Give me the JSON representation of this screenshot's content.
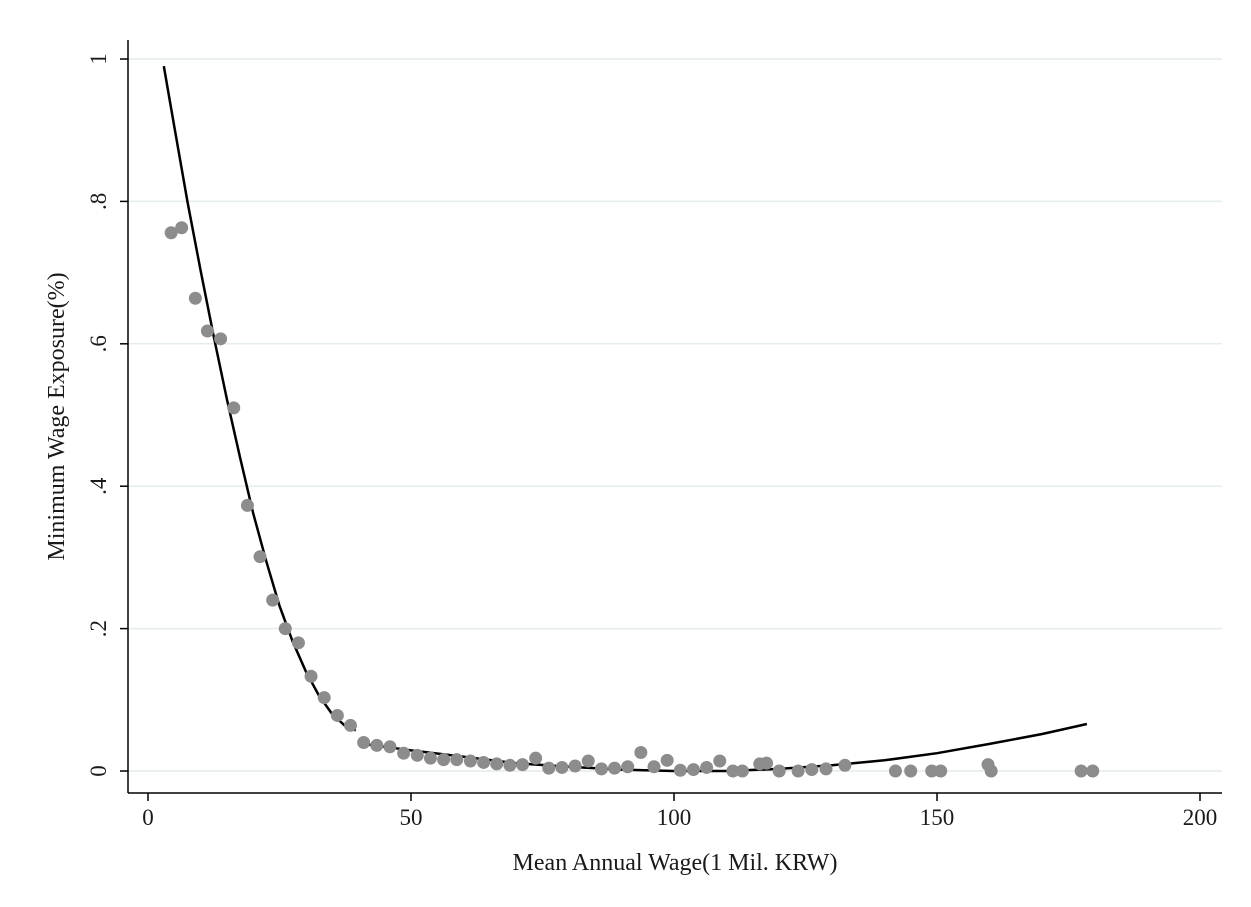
{
  "chart_data": {
    "type": "scatter",
    "title": "",
    "xlabel": "Mean Annual Wage(1 Mil. KRW)",
    "ylabel": "Minimum Wage Exposure(%)",
    "xlim": [
      0,
      200
    ],
    "ylim": [
      0,
      1
    ],
    "x_ticks": [
      0,
      50,
      100,
      150,
      200
    ],
    "x_tick_labels": [
      "0",
      "50",
      "100",
      "150",
      "200"
    ],
    "y_ticks": [
      0,
      0.2,
      0.4,
      0.6,
      0.8,
      1
    ],
    "y_tick_labels": [
      "0",
      ".2",
      ".4",
      ".6",
      ".8",
      "1"
    ],
    "grid": true,
    "colors": {
      "points": "#8c8c8c",
      "fit": "#000000",
      "grid": "#e4ecec"
    },
    "series": [
      {
        "kind": "scatter",
        "points": [
          [
            4.4,
            0.756
          ],
          [
            6.4,
            0.763
          ],
          [
            9.0,
            0.664
          ],
          [
            11.3,
            0.618
          ],
          [
            13.8,
            0.607
          ],
          [
            16.3,
            0.51
          ],
          [
            18.9,
            0.373
          ],
          [
            21.3,
            0.301
          ],
          [
            23.7,
            0.24
          ],
          [
            26.1,
            0.2
          ],
          [
            28.6,
            0.18
          ],
          [
            31.0,
            0.133
          ],
          [
            33.5,
            0.103
          ],
          [
            36.0,
            0.078
          ],
          [
            38.5,
            0.064
          ],
          [
            41.0,
            0.04
          ],
          [
            43.5,
            0.036
          ],
          [
            46.0,
            0.034
          ],
          [
            48.6,
            0.025
          ],
          [
            51.2,
            0.022
          ],
          [
            53.7,
            0.018
          ],
          [
            56.2,
            0.016
          ],
          [
            58.7,
            0.016
          ],
          [
            61.3,
            0.014
          ],
          [
            63.8,
            0.012
          ],
          [
            66.3,
            0.01
          ],
          [
            68.8,
            0.008
          ],
          [
            71.2,
            0.009
          ],
          [
            73.7,
            0.018
          ],
          [
            76.2,
            0.004
          ],
          [
            78.7,
            0.005
          ],
          [
            81.2,
            0.007
          ],
          [
            83.7,
            0.014
          ],
          [
            86.2,
            0.003
          ],
          [
            88.7,
            0.004
          ],
          [
            91.2,
            0.006
          ],
          [
            93.7,
            0.026
          ],
          [
            96.2,
            0.006
          ],
          [
            98.7,
            0.015
          ],
          [
            101.2,
            0.001
          ],
          [
            103.7,
            0.002
          ],
          [
            106.2,
            0.005
          ],
          [
            108.7,
            0.014
          ],
          [
            111.2,
            0.0
          ],
          [
            113.0,
            0.0
          ],
          [
            116.3,
            0.01
          ],
          [
            117.6,
            0.011
          ],
          [
            120.0,
            0.0
          ],
          [
            123.6,
            0.0
          ],
          [
            126.2,
            0.002
          ],
          [
            128.9,
            0.003
          ],
          [
            132.5,
            0.008
          ],
          [
            142.1,
            0.0
          ],
          [
            145.0,
            0.0
          ],
          [
            149.0,
            0.0
          ],
          [
            150.7,
            0.0
          ],
          [
            159.7,
            0.009
          ],
          [
            160.3,
            0.0
          ],
          [
            177.4,
            0.0
          ],
          [
            179.6,
            0.0
          ]
        ]
      },
      {
        "kind": "line",
        "points": [
          [
            3.0,
            0.99
          ],
          [
            5.0,
            0.905
          ],
          [
            7.5,
            0.8
          ],
          [
            10.0,
            0.703
          ],
          [
            12.5,
            0.61
          ],
          [
            15.0,
            0.522
          ],
          [
            17.5,
            0.44
          ],
          [
            20.0,
            0.362
          ],
          [
            22.5,
            0.294
          ],
          [
            25.0,
            0.232
          ],
          [
            27.5,
            0.182
          ],
          [
            30.0,
            0.14
          ],
          [
            32.5,
            0.106
          ],
          [
            35.0,
            0.08
          ],
          [
            37.5,
            0.063
          ],
          [
            39.5,
            0.057
          ]
        ]
      },
      {
        "kind": "line",
        "points": [
          [
            40.0,
            0.039
          ],
          [
            50.0,
            0.029
          ],
          [
            60.0,
            0.02
          ],
          [
            70.0,
            0.011
          ],
          [
            80.0,
            0.006
          ],
          [
            90.0,
            0.002
          ],
          [
            100.0,
            0.0
          ],
          [
            110.0,
            0.0
          ],
          [
            120.0,
            0.003
          ],
          [
            130.0,
            0.008
          ],
          [
            140.0,
            0.015
          ],
          [
            150.0,
            0.025
          ],
          [
            160.0,
            0.038
          ],
          [
            170.0,
            0.052
          ],
          [
            178.5,
            0.066
          ]
        ]
      }
    ]
  }
}
